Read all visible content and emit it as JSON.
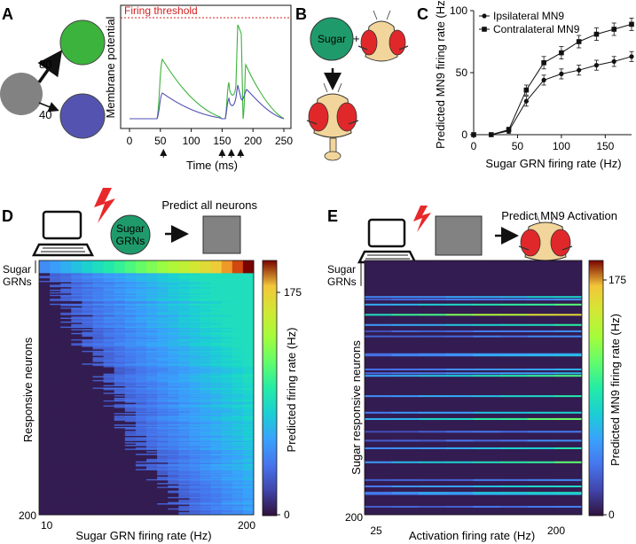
{
  "panel_labels": {
    "a": "A",
    "b": "B",
    "c": "C",
    "d": "D",
    "e": "E"
  },
  "colors": {
    "green_neuron": "#3cb33c",
    "blue_neuron": "#5454b0",
    "grey_neuron": "#828282",
    "sugar_circle": "#1f9b6b",
    "threshold": "#d42020",
    "fly_head": "#f2d59a",
    "fly_eye": "#e0282a",
    "trace_green": "#3cb33c",
    "trace_blue": "#5050b4"
  },
  "panel_a": {
    "weight_top": "80",
    "weight_bottom": "40",
    "threshold_label": "Firing threshold",
    "ylabel": "Membrane potential",
    "xlabel": "Time (ms)",
    "x_ticks": [
      "0",
      "50",
      "100",
      "150",
      "200",
      "250"
    ],
    "spike_times_ms": [
      55,
      150,
      165,
      180
    ]
  },
  "panel_b": {
    "sugar_label": "Sugar",
    "plus": "+"
  },
  "panel_d": {
    "title": "Predict all neurons",
    "circle_label_1": "Sugar",
    "circle_label_2": "GRNs",
    "row_label_1": "Sugar",
    "row_label_2": "GRNs",
    "ylabel": "Responsive neurons",
    "y_bottom_tick": "200",
    "xlabel": "Sugar GRN firing rate (Hz)",
    "x_ticks": [
      "10",
      "200"
    ],
    "colorbar_label": "Predicted firing rate (Hz)",
    "colorbar_ticks": [
      "175",
      "0"
    ]
  },
  "panel_e": {
    "title": "Predict MN9 Activation",
    "row_label_1": "Sugar",
    "row_label_2": "GRNs",
    "ylabel": "Sugar responsive neurons",
    "y_bottom_tick": "200",
    "xlabel": "Activation firing rate (Hz)",
    "x_ticks": [
      "25",
      "200"
    ],
    "colorbar_label": "Predicted MN9 firing rate (Hz)",
    "colorbar_ticks": [
      "175",
      "0"
    ]
  },
  "chart_data": [
    {
      "type": "line",
      "panel": "C",
      "xlabel": "Sugar GRN firing rate (Hz)",
      "ylabel": "Predicted MN9 firing rate (Hz)",
      "xlim": [
        0,
        180
      ],
      "ylim": [
        0,
        100
      ],
      "x_ticks": [
        "0",
        "50",
        "100",
        "150"
      ],
      "y_ticks": [
        "0",
        "50",
        "100"
      ],
      "legend_position": "top-left",
      "x": [
        0,
        20,
        40,
        60,
        80,
        100,
        120,
        140,
        160,
        180
      ],
      "series": [
        {
          "name": "Ipsilateral MN9",
          "marker": "circle",
          "values": [
            0,
            0,
            3,
            27,
            44,
            49,
            52,
            56,
            59,
            63
          ],
          "errors": [
            0,
            0,
            2,
            4,
            4,
            4,
            4,
            4,
            4,
            4
          ]
        },
        {
          "name": "Contralateral MN9",
          "marker": "square",
          "values": [
            0,
            0,
            4,
            36,
            58,
            66,
            75,
            81,
            85,
            89
          ],
          "errors": [
            0,
            0,
            2,
            4,
            5,
            5,
            5,
            5,
            5,
            5
          ]
        }
      ]
    },
    {
      "type": "heatmap",
      "panel": "D",
      "xlabel": "Sugar GRN firing rate (Hz)",
      "ylabel": "Responsive neurons",
      "x_range": [
        10,
        200
      ],
      "n_columns": 20,
      "n_rows": 200,
      "color_range": [
        0,
        200
      ],
      "colorbar_ticks": [
        0,
        175
      ],
      "row_group_label": "Sugar GRNs",
      "sugar_grn_rows": 10
    },
    {
      "type": "heatmap",
      "panel": "E",
      "xlabel": "Activation firing rate (Hz)",
      "ylabel": "Sugar responsive neurons",
      "x_range": [
        25,
        200
      ],
      "n_columns": 8,
      "n_rows": 200,
      "color_range": [
        0,
        200
      ],
      "colorbar_ticks": [
        0,
        175
      ],
      "row_group_label": "Sugar GRNs",
      "sugar_grn_rows": 10
    }
  ]
}
